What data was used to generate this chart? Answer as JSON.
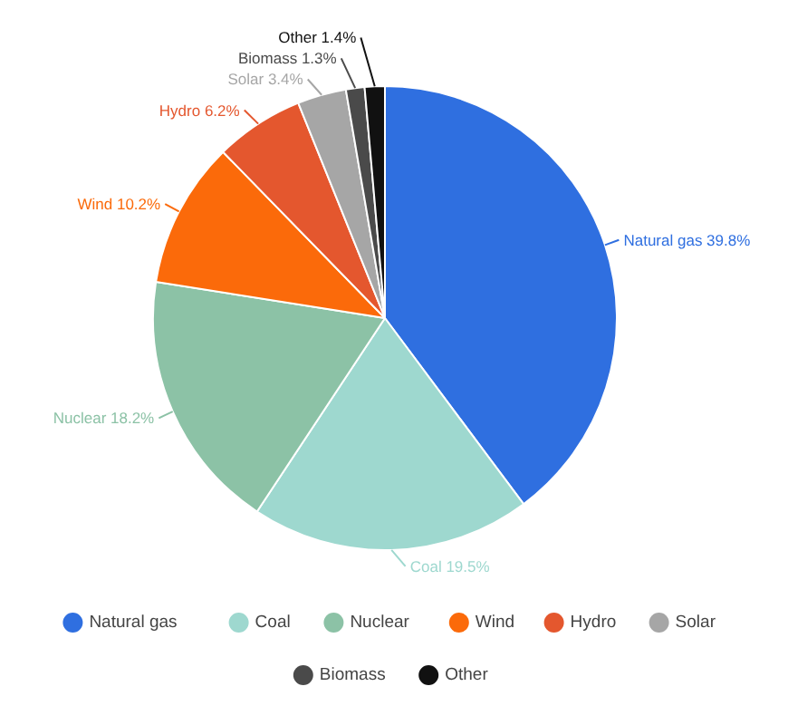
{
  "chart_data": {
    "type": "pie",
    "categories": [
      "Natural gas",
      "Coal",
      "Nuclear",
      "Wind",
      "Hydro",
      "Solar",
      "Biomass",
      "Other"
    ],
    "values": [
      39.8,
      19.5,
      18.2,
      10.2,
      6.2,
      3.4,
      1.3,
      1.4
    ],
    "colors": [
      "#2f6fe0",
      "#9ed8cf",
      "#8cc2a6",
      "#fb6a0a",
      "#e4572e",
      "#a6a6a6",
      "#4a4a4a",
      "#111111"
    ],
    "value_labels": [
      "Natural gas 39.8%",
      "Coal 19.5%",
      "Nuclear 18.2%",
      "Wind 10.2%",
      "Hydro 6.2%",
      "Solar 3.4%",
      "Biomass 1.3%",
      "Other 1.4%"
    ],
    "legend": "bottom"
  }
}
